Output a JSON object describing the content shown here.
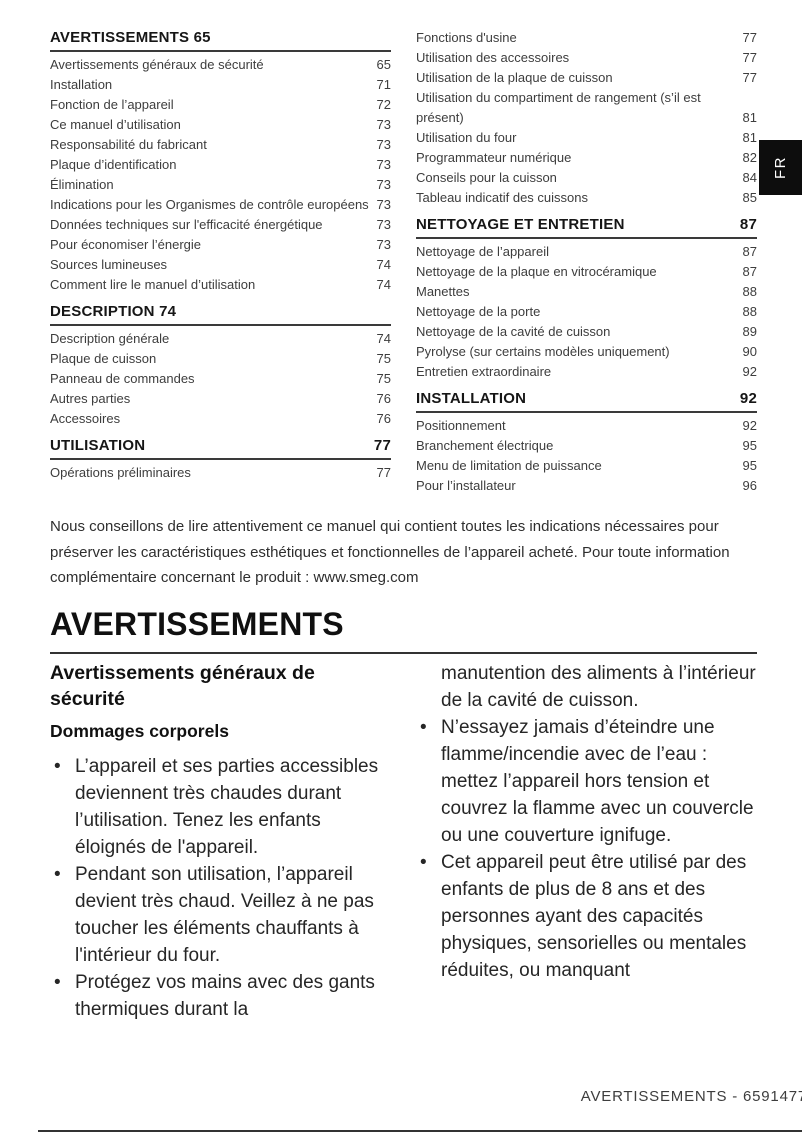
{
  "page": {
    "language_tab": "FR",
    "footer": "AVERTISSEMENTS - 6591477"
  },
  "toc": {
    "left": [
      {
        "title": "AVERTISSEMENTS",
        "page": "65",
        "page_inline": true,
        "entries": [
          {
            "label": "Avertissements généraux de sécurité",
            "page": "65"
          },
          {
            "label": "Installation",
            "page": "71"
          },
          {
            "label": "Fonction de l’appareil",
            "page": "72"
          },
          {
            "label": "Ce manuel d’utilisation",
            "page": "73"
          },
          {
            "label": "Responsabilité du fabricant",
            "page": "73"
          },
          {
            "label": "Plaque d’identification",
            "page": "73"
          },
          {
            "label": "Élimination",
            "page": "73"
          },
          {
            "label": "Indications pour les Organismes de contrôle européens",
            "page": "73"
          },
          {
            "label": "Données techniques sur l'efficacité énergétique",
            "page": "73"
          },
          {
            "label": "Pour économiser l’énergie",
            "page": "73"
          },
          {
            "label": "Sources lumineuses",
            "page": "74"
          },
          {
            "label": "Comment lire le manuel d’utilisation",
            "page": "74"
          }
        ]
      },
      {
        "title": "DESCRIPTION",
        "page": "74",
        "page_inline": true,
        "entries": [
          {
            "label": "Description générale",
            "page": "74"
          },
          {
            "label": "Plaque de cuisson",
            "page": "75"
          },
          {
            "label": "Panneau de commandes",
            "page": "75"
          },
          {
            "label": "Autres parties",
            "page": "76"
          },
          {
            "label": "Accessoires",
            "page": "76"
          }
        ]
      },
      {
        "title": "UTILISATION",
        "page": "77",
        "page_inline": false,
        "entries": [
          {
            "label": "Opérations préliminaires",
            "page": "77"
          }
        ]
      }
    ],
    "right": [
      {
        "title": null,
        "entries": [
          {
            "label": "Fonctions d'usine",
            "page": "77"
          },
          {
            "label": "Utilisation des accessoires",
            "page": "77"
          },
          {
            "label": "Utilisation de la plaque de cuisson",
            "page": "77"
          },
          {
            "label": "Utilisation du compartiment de rangement (s’il est présent)",
            "page": "81"
          },
          {
            "label": "Utilisation du four",
            "page": "81"
          },
          {
            "label": "Programmateur numérique",
            "page": "82"
          },
          {
            "label": "Conseils pour la cuisson",
            "page": "84"
          },
          {
            "label": "Tableau indicatif des cuissons",
            "page": "85"
          }
        ]
      },
      {
        "title": "NETTOYAGE ET ENTRETIEN",
        "page": "87",
        "page_inline": false,
        "entries": [
          {
            "label": "Nettoyage de l’appareil",
            "page": "87"
          },
          {
            "label": "Nettoyage de la plaque en vitrocéramique",
            "page": "87"
          },
          {
            "label": "Manettes",
            "page": "88"
          },
          {
            "label": "Nettoyage de la porte",
            "page": "88"
          },
          {
            "label": "Nettoyage de la cavité de cuisson",
            "page": "89"
          },
          {
            "label": "Pyrolyse (sur certains modèles uniquement)",
            "page": "90"
          },
          {
            "label": "Entretien extraordinaire",
            "page": "92"
          }
        ]
      },
      {
        "title": "INSTALLATION",
        "page": "92",
        "page_inline": false,
        "entries": [
          {
            "label": "Positionnement",
            "page": "92"
          },
          {
            "label": "Branchement électrique",
            "page": "95"
          },
          {
            "label": "Menu de limitation de puissance",
            "page": "95"
          },
          {
            "label": "Pour l’installateur",
            "page": "96"
          }
        ]
      }
    ]
  },
  "intro": "Nous conseillons de lire attentivement ce manuel qui contient toutes les indications nécessaires pour préserver les caractéristiques esthétiques et fonctionnelles de l’appareil acheté. Pour toute information complémentaire concernant le produit : www.smeg.com",
  "section": {
    "title": "AVERTISSEMENTS",
    "left": {
      "heading": "Avertissements généraux de sécurité",
      "subheading": "Dommages corporels",
      "bullets": [
        "L’appareil et ses parties accessibles deviennent très chaudes durant l’utilisation. Tenez les enfants éloignés de l'appareil.",
        "Pendant son utilisation, l’appareil devient très chaud. Veillez à ne pas toucher les éléments chauffants à l'intérieur du four.",
        "Protégez vos mains avec des gants thermiques durant la"
      ]
    },
    "right": {
      "lead": "manutention des aliments à l’intérieur de la cavité de cuisson.",
      "bullets": [
        "N’essayez jamais d’éteindre une flamme/incendie avec de l’eau : mettez l’appareil hors tension et couvrez la flamme avec un couvercle ou une couverture ignifuge.",
        "Cet appareil peut être utilisé par des enfants de plus de 8 ans et des personnes ayant des capacités physiques, sensorielles ou mentales réduites, ou manquant"
      ]
    }
  }
}
